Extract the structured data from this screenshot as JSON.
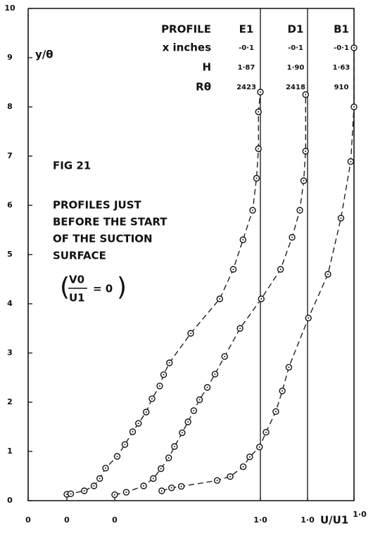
{
  "chart_data": {
    "type": "line",
    "y_label": "y/θ",
    "x_label": "U/U1",
    "ylim": [
      0,
      10
    ],
    "yticks": [
      0,
      1,
      2,
      3,
      4,
      5,
      6,
      7,
      8,
      9,
      10
    ],
    "xlim": [
      0,
      1
    ],
    "xticks": [
      {
        "value": 0,
        "label": "0"
      },
      {
        "value": 1,
        "label": "1·0"
      }
    ],
    "color": "#111111",
    "annotations": [
      "FIG 21",
      "PROFILES JUST",
      "BEFORE THE START",
      "OF THE SUCTION",
      "SURFACE"
    ],
    "condition": {
      "numerator": "V0",
      "denominator": "U1",
      "rest": "= 0"
    },
    "table": {
      "header": [
        "PROFILE",
        "E1",
        "D1",
        "B1"
      ],
      "rows": [
        [
          "x inches",
          "-0·1",
          "-0·1",
          "-0·1"
        ],
        [
          "H",
          "1·87",
          "1·90",
          "1·63"
        ],
        [
          "Rθ",
          "2423",
          "2418",
          "910"
        ]
      ]
    },
    "series": [
      {
        "name": "E1",
        "x": [
          0.0,
          0.02,
          0.09,
          0.14,
          0.17,
          0.2,
          0.26,
          0.3,
          0.34,
          0.37,
          0.41,
          0.44,
          0.48,
          0.5,
          0.53,
          0.64,
          0.79,
          0.86,
          0.91,
          0.96,
          0.98,
          0.99,
          0.99,
          1.0
        ],
        "values": [
          0.13,
          0.14,
          0.2,
          0.3,
          0.45,
          0.66,
          0.9,
          1.14,
          1.4,
          1.57,
          1.8,
          2.07,
          2.33,
          2.56,
          2.8,
          3.4,
          4.1,
          4.7,
          5.3,
          5.9,
          6.55,
          7.15,
          7.9,
          8.3
        ]
      },
      {
        "name": "D1",
        "x": [
          0.0,
          0.06,
          0.15,
          0.2,
          0.24,
          0.28,
          0.31,
          0.35,
          0.38,
          0.41,
          0.44,
          0.48,
          0.52,
          0.57,
          0.65,
          0.76,
          0.86,
          0.92,
          0.96,
          0.98,
          0.99,
          0.99
        ],
        "values": [
          0.12,
          0.17,
          0.3,
          0.45,
          0.65,
          0.87,
          1.1,
          1.38,
          1.6,
          1.83,
          2.05,
          2.3,
          2.57,
          2.93,
          3.5,
          4.1,
          4.7,
          5.35,
          5.9,
          6.5,
          7.1,
          8.25
        ]
      },
      {
        "name": "B1",
        "x": [
          0.41,
          0.44,
          0.47,
          0.58,
          0.62,
          0.66,
          0.68,
          0.71,
          0.73,
          0.76,
          0.78,
          0.8,
          0.86,
          0.92,
          0.96,
          0.99,
          1.0,
          1.0
        ],
        "values": [
          0.2,
          0.26,
          0.29,
          0.41,
          0.49,
          0.69,
          0.89,
          1.09,
          1.39,
          1.81,
          2.23,
          2.71,
          3.71,
          4.6,
          5.74,
          6.89,
          8.0,
          9.2
        ]
      }
    ]
  }
}
